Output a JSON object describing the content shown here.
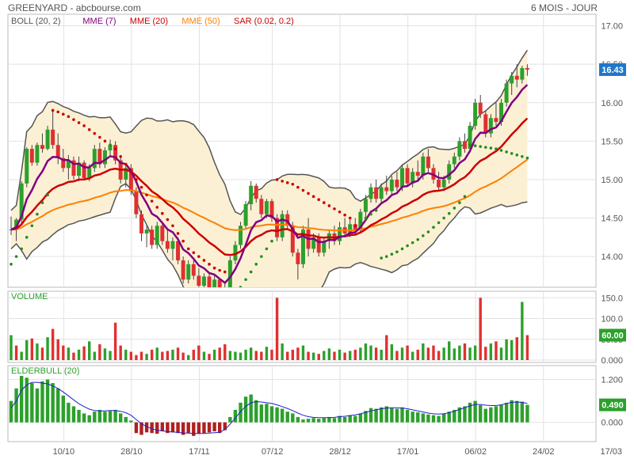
{
  "header": {
    "title": "GREENYARD - abcbourse.com",
    "period": "6 MOIS - JOUR"
  },
  "legend": [
    {
      "text": "BOLL (20, 2)",
      "color": "#555555"
    },
    {
      "text": "MME (7)",
      "color": "#800080"
    },
    {
      "text": "MME (20)",
      "color": "#cc0000"
    },
    {
      "text": "MME (50)",
      "color": "#ff7f00"
    },
    {
      "text": "SAR (0.02, 0.2)",
      "color": "#cc0000"
    }
  ],
  "colors": {
    "up": "#2ca02c",
    "down": "#e03030",
    "boll_line": "#555555",
    "boll_fill": "#fbf0d4",
    "mme7": "#800080",
    "mme20": "#cc0000",
    "mme50": "#ff7f00",
    "sar_up": "#1f8f1f",
    "sar_down": "#cc0000",
    "elder_line": "#2020cc",
    "grid": "#e2e2e2",
    "axis_text": "#555555"
  },
  "chart_data": [
    {
      "panel": "price",
      "type": "candlestick",
      "y_ticks": [
        "17.00",
        "16.50",
        "16.00",
        "15.50",
        "15.00",
        "14.50",
        "14.00"
      ],
      "ylim": [
        13.6,
        17.15
      ],
      "last_value": "16.43",
      "ohlc": [
        [
          14.34,
          14.52,
          14.28,
          14.35
        ],
        [
          14.35,
          14.5,
          14.2,
          14.48
        ],
        [
          14.48,
          14.98,
          14.42,
          14.95
        ],
        [
          14.95,
          15.42,
          14.9,
          15.4
        ],
        [
          15.4,
          15.45,
          15.18,
          15.22
        ],
        [
          15.22,
          15.48,
          15.18,
          15.45
        ],
        [
          15.45,
          15.6,
          15.35,
          15.4
        ],
        [
          15.4,
          15.7,
          15.38,
          15.65
        ],
        [
          15.65,
          15.9,
          15.4,
          15.45
        ],
        [
          15.45,
          15.6,
          15.2,
          15.28
        ],
        [
          15.28,
          15.4,
          15.1,
          15.15
        ],
        [
          15.15,
          15.32,
          15.0,
          15.25
        ],
        [
          15.25,
          15.3,
          15.0,
          15.05
        ],
        [
          15.05,
          15.3,
          14.98,
          15.22
        ],
        [
          15.22,
          15.25,
          15.0,
          15.02
        ],
        [
          15.02,
          15.2,
          14.98,
          15.15
        ],
        [
          15.15,
          15.45,
          15.1,
          15.4
        ],
        [
          15.4,
          15.48,
          15.15,
          15.2
        ],
        [
          15.2,
          15.42,
          15.15,
          15.38
        ],
        [
          15.38,
          15.52,
          15.3,
          15.45
        ],
        [
          15.45,
          15.5,
          15.2,
          15.25
        ],
        [
          15.25,
          15.3,
          14.95,
          15.0
        ],
        [
          15.0,
          15.2,
          14.9,
          15.15
        ],
        [
          15.15,
          15.2,
          14.8,
          14.85
        ],
        [
          14.85,
          14.9,
          14.5,
          14.55
        ],
        [
          14.55,
          14.6,
          14.2,
          14.3
        ],
        [
          14.3,
          14.4,
          14.12,
          14.35
        ],
        [
          14.35,
          14.4,
          14.1,
          14.15
        ],
        [
          14.15,
          14.45,
          14.1,
          14.4
        ],
        [
          14.4,
          14.45,
          14.15,
          14.2
        ],
        [
          14.2,
          14.35,
          14.05,
          14.1
        ],
        [
          14.1,
          14.25,
          13.95,
          14.2
        ],
        [
          14.2,
          14.25,
          13.9,
          13.95
        ],
        [
          13.95,
          14.0,
          13.65,
          13.7
        ],
        [
          13.7,
          13.95,
          13.65,
          13.9
        ],
        [
          13.9,
          13.95,
          13.7,
          13.75
        ],
        [
          13.75,
          13.85,
          13.6,
          13.62
        ],
        [
          13.62,
          13.78,
          13.58,
          13.74
        ],
        [
          13.74,
          13.8,
          13.58,
          13.6
        ],
        [
          13.6,
          13.75,
          13.55,
          13.7
        ],
        [
          13.7,
          13.72,
          13.5,
          13.55
        ],
        [
          13.55,
          13.65,
          13.45,
          13.5
        ],
        [
          13.5,
          14.0,
          13.48,
          13.95
        ],
        [
          13.95,
          14.2,
          13.9,
          14.15
        ],
        [
          14.15,
          14.45,
          14.1,
          14.4
        ],
        [
          14.4,
          14.72,
          14.35,
          14.68
        ],
        [
          14.68,
          14.98,
          14.6,
          14.92
        ],
        [
          14.92,
          14.95,
          14.7,
          14.75
        ],
        [
          14.75,
          14.8,
          14.5,
          14.55
        ],
        [
          14.55,
          14.75,
          14.5,
          14.72
        ],
        [
          14.72,
          14.75,
          14.45,
          14.5
        ],
        [
          14.5,
          14.55,
          14.2,
          14.25
        ],
        [
          14.25,
          14.6,
          14.2,
          14.55
        ],
        [
          14.55,
          14.6,
          14.35,
          14.4
        ],
        [
          14.4,
          14.45,
          14.0,
          14.05
        ],
        [
          14.05,
          14.1,
          13.7,
          13.9
        ],
        [
          13.9,
          14.4,
          13.85,
          14.35
        ],
        [
          14.35,
          14.5,
          14.0,
          14.1
        ],
        [
          14.1,
          14.3,
          14.05,
          14.25
        ],
        [
          14.25,
          14.3,
          14.0,
          14.05
        ],
        [
          14.05,
          14.25,
          14.0,
          14.2
        ],
        [
          14.2,
          14.35,
          14.1,
          14.3
        ],
        [
          14.3,
          14.4,
          14.15,
          14.2
        ],
        [
          14.2,
          14.45,
          14.15,
          14.38
        ],
        [
          14.38,
          14.5,
          14.25,
          14.3
        ],
        [
          14.3,
          14.48,
          14.25,
          14.42
        ],
        [
          14.42,
          14.5,
          14.3,
          14.35
        ],
        [
          14.35,
          14.62,
          14.3,
          14.58
        ],
        [
          14.58,
          14.8,
          14.5,
          14.75
        ],
        [
          14.75,
          14.95,
          14.7,
          14.9
        ],
        [
          14.9,
          15.0,
          14.7,
          14.75
        ],
        [
          14.75,
          14.95,
          14.7,
          14.9
        ],
        [
          14.9,
          15.05,
          14.8,
          14.85
        ],
        [
          14.85,
          15.05,
          14.8,
          15.0
        ],
        [
          15.0,
          15.1,
          14.85,
          14.9
        ],
        [
          14.9,
          15.2,
          14.85,
          15.15
        ],
        [
          15.15,
          15.2,
          14.9,
          14.95
        ],
        [
          14.95,
          15.15,
          14.9,
          15.1
        ],
        [
          15.1,
          15.25,
          15.0,
          15.05
        ],
        [
          15.05,
          15.35,
          15.0,
          15.3
        ],
        [
          15.3,
          15.4,
          15.1,
          15.15
        ],
        [
          15.15,
          15.2,
          14.95,
          15.0
        ],
        [
          15.0,
          15.1,
          14.85,
          14.9
        ],
        [
          14.9,
          15.05,
          14.85,
          15.0
        ],
        [
          15.0,
          15.25,
          14.95,
          15.2
        ],
        [
          15.2,
          15.35,
          15.15,
          15.3
        ],
        [
          15.3,
          15.55,
          15.25,
          15.5
        ],
        [
          15.5,
          15.6,
          15.35,
          15.4
        ],
        [
          15.4,
          15.75,
          15.35,
          15.7
        ],
        [
          15.7,
          16.05,
          15.65,
          16.0
        ],
        [
          16.0,
          16.1,
          15.8,
          15.85
        ],
        [
          15.85,
          15.9,
          15.55,
          15.6
        ],
        [
          15.6,
          15.85,
          15.55,
          15.8
        ],
        [
          15.8,
          16.0,
          15.7,
          15.75
        ],
        [
          15.75,
          16.05,
          15.7,
          16.0
        ],
        [
          16.0,
          16.3,
          15.95,
          16.25
        ],
        [
          16.25,
          16.4,
          16.1,
          16.35
        ],
        [
          16.35,
          16.5,
          16.2,
          16.3
        ],
        [
          16.3,
          16.48,
          16.25,
          16.45
        ],
        [
          16.45,
          16.5,
          16.35,
          16.43
        ]
      ],
      "sar": [
        13.9,
        14.0,
        14.1,
        14.25,
        14.4,
        14.55,
        14.7,
        14.8,
        15.9,
        15.88,
        15.85,
        15.82,
        15.78,
        15.74,
        15.7,
        15.65,
        15.6,
        15.55,
        15.5,
        15.45,
        15.4,
        15.3,
        15.2,
        15.1,
        15.0,
        14.9,
        14.8,
        14.72,
        14.64,
        14.56,
        14.48,
        14.4,
        14.3,
        14.2,
        14.1,
        14.05,
        14.0,
        13.95,
        13.9,
        13.85,
        13.82,
        13.8,
        13.45,
        13.5,
        13.6,
        13.7,
        13.8,
        13.9,
        14.0,
        14.1,
        14.2,
        15.0,
        14.98,
        14.96,
        14.94,
        14.9,
        14.86,
        14.82,
        14.78,
        14.74,
        14.7,
        14.66,
        14.62,
        14.58,
        14.54,
        14.5,
        14.4,
        14.45,
        14.5,
        14.55,
        14.6,
        13.98,
        14.0,
        14.03,
        14.06,
        14.1,
        14.14,
        14.18,
        14.22,
        14.27,
        14.32,
        14.38,
        14.44,
        14.5,
        14.56,
        14.63,
        14.7,
        14.78,
        15.45,
        15.44,
        15.43,
        15.42,
        15.41,
        15.4,
        15.38,
        15.36,
        15.34,
        15.32,
        15.3,
        15.28
      ]
    },
    {
      "panel": "volume",
      "type": "bar",
      "label": "VOLUME",
      "y_ticks": [
        "150.0",
        "100.0",
        "50.00",
        "0.000"
      ],
      "ylim": [
        0,
        160
      ],
      "last_value": "60.00",
      "values": [
        60,
        35,
        20,
        48,
        52,
        40,
        30,
        55,
        75,
        50,
        35,
        30,
        18,
        25,
        33,
        45,
        20,
        38,
        28,
        22,
        90,
        35,
        25,
        20,
        12,
        20,
        15,
        25,
        30,
        20,
        22,
        25,
        30,
        18,
        12,
        25,
        35,
        20,
        15,
        25,
        30,
        38,
        22,
        20,
        18,
        25,
        30,
        22,
        20,
        32,
        25,
        150,
        40,
        20,
        25,
        30,
        35,
        20,
        18,
        15,
        22,
        28,
        20,
        25,
        18,
        22,
        25,
        30,
        40,
        35,
        30,
        25,
        60,
        38,
        22,
        30,
        35,
        20,
        25,
        40,
        30,
        35,
        22,
        30,
        45,
        28,
        35,
        40,
        30,
        35,
        150,
        32,
        40,
        45,
        30,
        50,
        48,
        55,
        140,
        60
      ],
      "up_flags": [
        1,
        0,
        1,
        1,
        0,
        1,
        0,
        1,
        0,
        0,
        0,
        1,
        0,
        1,
        0,
        1,
        1,
        0,
        1,
        1,
        0,
        0,
        1,
        0,
        0,
        0,
        1,
        0,
        1,
        0,
        0,
        1,
        0,
        0,
        1,
        0,
        0,
        1,
        0,
        1,
        0,
        0,
        1,
        1,
        1,
        1,
        1,
        0,
        0,
        1,
        0,
        0,
        1,
        0,
        0,
        0,
        1,
        0,
        1,
        0,
        1,
        1,
        0,
        1,
        0,
        1,
        0,
        1,
        1,
        1,
        0,
        1,
        0,
        1,
        0,
        1,
        0,
        1,
        0,
        1,
        0,
        0,
        0,
        1,
        1,
        1,
        1,
        0,
        1,
        1,
        0,
        0,
        1,
        0,
        1,
        1,
        1,
        0,
        1,
        0
      ]
    },
    {
      "panel": "elderbull",
      "type": "bar",
      "label": "ELDERBULL (20)",
      "y_ticks": [
        "1.200",
        "0.000"
      ],
      "ylim": [
        -0.45,
        1.5
      ],
      "last_value": "0.490",
      "values": [
        0.6,
        0.95,
        1.3,
        1.25,
        1.1,
        0.95,
        1.15,
        1.2,
        1.1,
        0.95,
        0.75,
        0.55,
        0.45,
        0.35,
        0.25,
        0.2,
        0.3,
        0.35,
        0.3,
        0.32,
        0.35,
        0.25,
        0.15,
        0.05,
        -0.3,
        -0.35,
        -0.28,
        -0.3,
        -0.32,
        -0.25,
        -0.3,
        -0.28,
        -0.3,
        -0.35,
        -0.3,
        -0.38,
        -0.32,
        -0.3,
        -0.28,
        -0.25,
        -0.3,
        -0.22,
        0.15,
        0.35,
        0.55,
        0.72,
        0.78,
        0.62,
        0.5,
        0.52,
        0.45,
        0.42,
        0.38,
        0.3,
        0.25,
        0.15,
        0.08,
        0.1,
        0.12,
        0.1,
        0.12,
        0.15,
        0.12,
        0.18,
        0.15,
        0.2,
        0.18,
        0.25,
        0.32,
        0.4,
        0.38,
        0.42,
        0.45,
        0.4,
        0.38,
        0.42,
        0.35,
        0.3,
        0.28,
        0.25,
        0.22,
        0.2,
        0.18,
        0.25,
        0.3,
        0.35,
        0.42,
        0.45,
        0.55,
        0.6,
        0.48,
        0.38,
        0.42,
        0.45,
        0.5,
        0.55,
        0.62,
        0.6,
        0.58,
        0.49
      ],
      "avg": [
        0.4,
        0.6,
        0.9,
        1.05,
        1.12,
        1.12,
        1.1,
        1.08,
        1.02,
        0.95,
        0.85,
        0.74,
        0.63,
        0.52,
        0.44,
        0.37,
        0.33,
        0.32,
        0.32,
        0.33,
        0.33,
        0.31,
        0.27,
        0.2,
        0.08,
        -0.04,
        -0.12,
        -0.18,
        -0.22,
        -0.24,
        -0.26,
        -0.27,
        -0.28,
        -0.3,
        -0.3,
        -0.31,
        -0.31,
        -0.31,
        -0.3,
        -0.29,
        -0.28,
        -0.2,
        -0.05,
        0.12,
        0.3,
        0.45,
        0.55,
        0.58,
        0.57,
        0.55,
        0.53,
        0.49,
        0.44,
        0.39,
        0.33,
        0.26,
        0.2,
        0.16,
        0.14,
        0.13,
        0.13,
        0.13,
        0.14,
        0.16,
        0.17,
        0.19,
        0.21,
        0.24,
        0.28,
        0.32,
        0.35,
        0.38,
        0.4,
        0.41,
        0.41,
        0.4,
        0.38,
        0.35,
        0.32,
        0.29,
        0.26,
        0.24,
        0.23,
        0.24,
        0.27,
        0.31,
        0.36,
        0.41,
        0.46,
        0.5,
        0.5,
        0.48,
        0.47,
        0.47,
        0.49,
        0.53,
        0.56,
        0.57,
        0.56,
        0.53
      ]
    }
  ],
  "x_axis": {
    "labels": [
      {
        "text": "10/10",
        "index": 11
      },
      {
        "text": "28/10",
        "index": 24
      },
      {
        "text": "17/11",
        "index": 37
      },
      {
        "text": "07/12",
        "index": 51
      },
      {
        "text": "28/12",
        "index": 64
      },
      {
        "text": "17/01",
        "index": 77
      },
      {
        "text": "06/02",
        "index": 90
      },
      {
        "text": "24/02",
        "index": 103
      },
      {
        "text": "17/03",
        "index": 116
      }
    ]
  }
}
